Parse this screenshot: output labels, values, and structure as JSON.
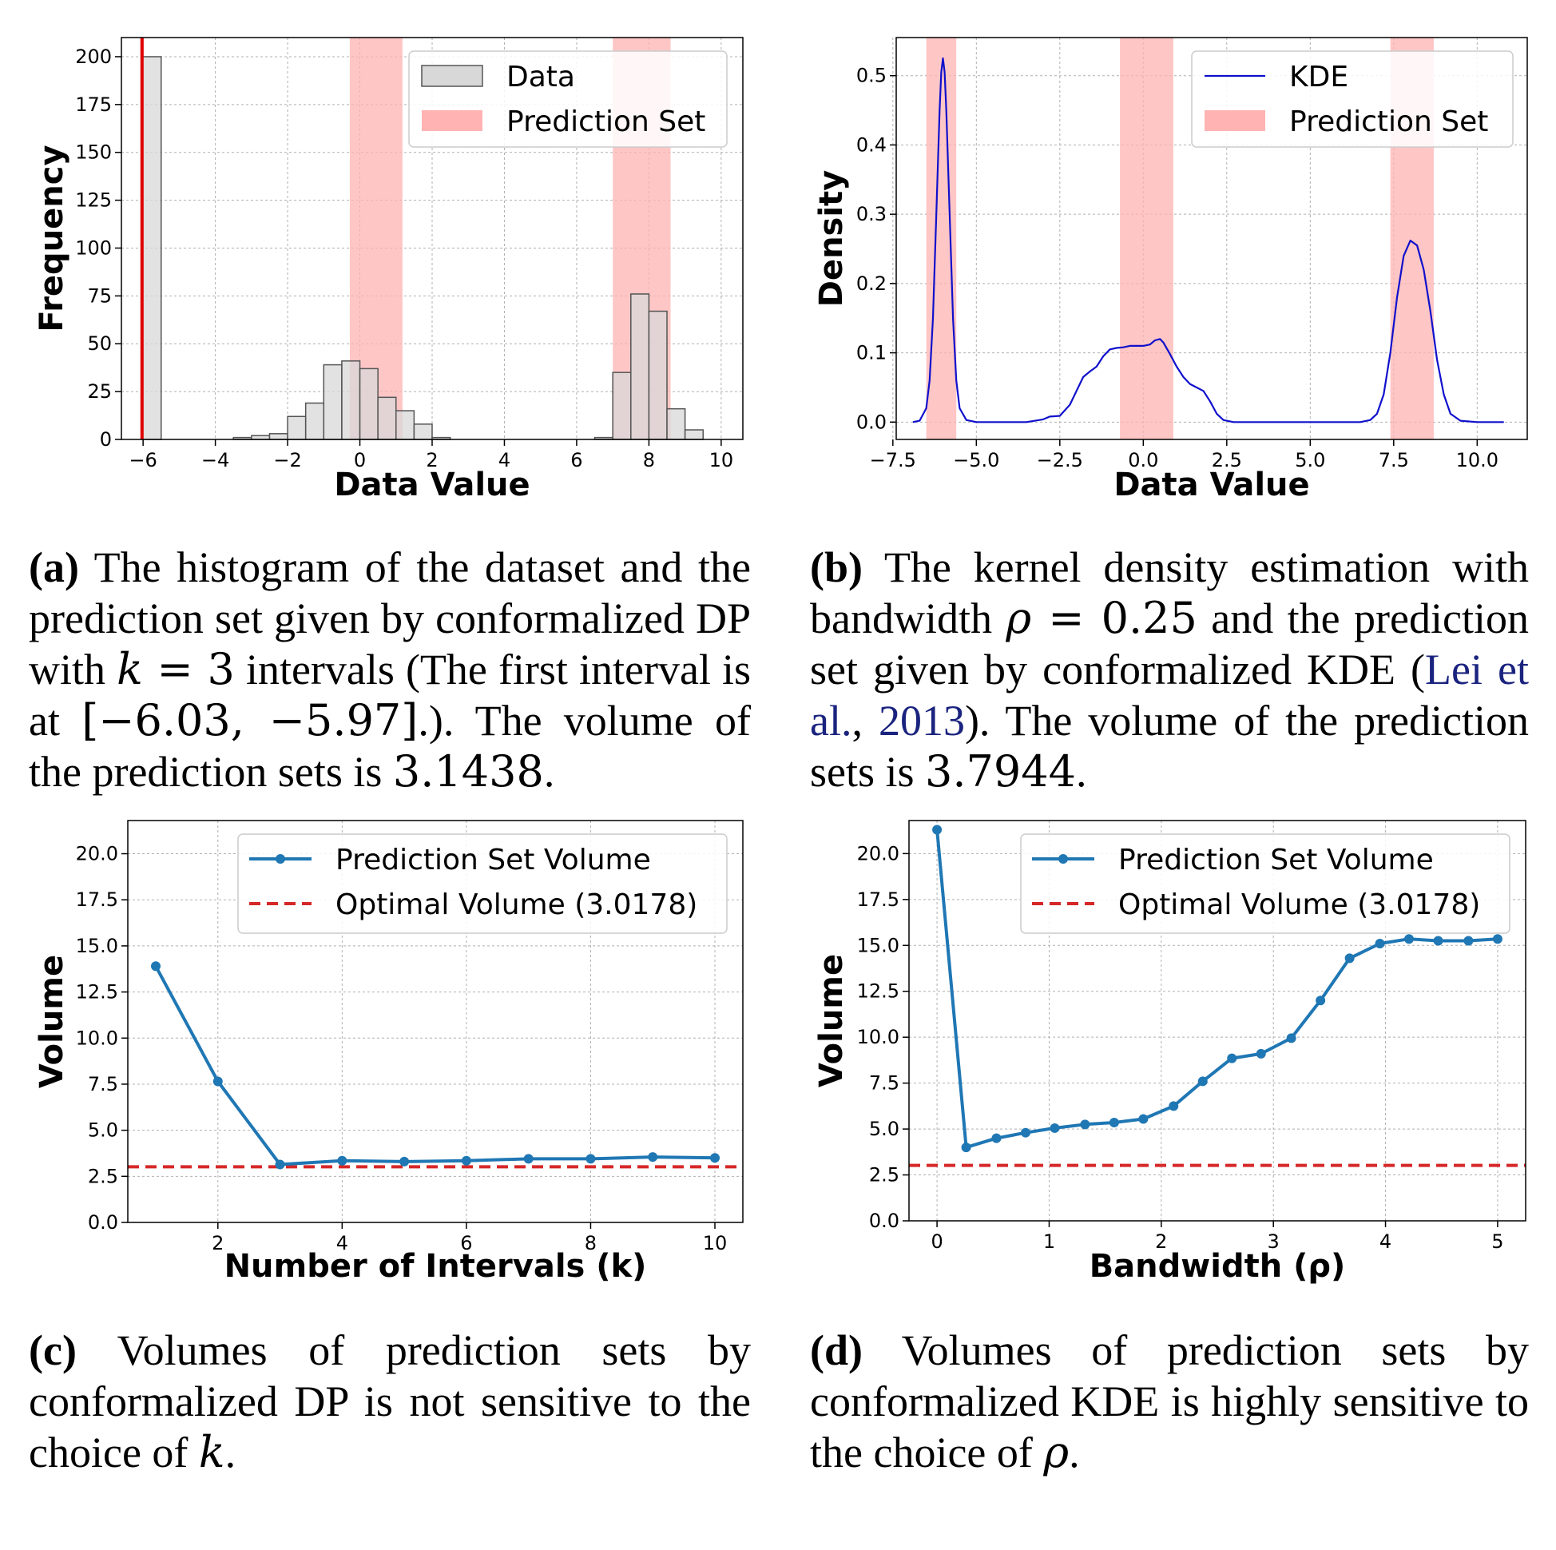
{
  "colors": {
    "hist_fill": "#d8d8d8",
    "hist_edge": "#555555",
    "pred_band": "#ffb3b3",
    "red_line": "#e00000",
    "kde_line": "#1010cc",
    "volume_line": "#1f77b4",
    "optimal_line": "#d62728",
    "grid": "#b0b0b0"
  },
  "chart_data": [
    {
      "id": "a",
      "type": "bar",
      "xlabel": "Data Value",
      "ylabel": "Frequency",
      "xlim": [
        -6.6,
        10.6
      ],
      "ylim": [
        0,
        210
      ],
      "xticks": [
        -6,
        -4,
        -2,
        0,
        2,
        4,
        6,
        8,
        10
      ],
      "xtick_labels": [
        "−6",
        "−4",
        "−2",
        "0",
        "2",
        "4",
        "6",
        "8",
        "10"
      ],
      "yticks": [
        0,
        25,
        50,
        75,
        100,
        125,
        150,
        175,
        200
      ],
      "ytick_labels": [
        "0",
        "25",
        "50",
        "75",
        "100",
        "125",
        "150",
        "175",
        "200"
      ],
      "bars": [
        {
          "x0": -6.03,
          "x1": -5.5,
          "value": 200
        },
        {
          "x0": -3.5,
          "x1": -3.0,
          "value": 1
        },
        {
          "x0": -3.0,
          "x1": -2.5,
          "value": 2
        },
        {
          "x0": -2.5,
          "x1": -2.0,
          "value": 3
        },
        {
          "x0": -2.0,
          "x1": -1.5,
          "value": 12
        },
        {
          "x0": -1.5,
          "x1": -1.0,
          "value": 19
        },
        {
          "x0": -1.0,
          "x1": -0.5,
          "value": 39
        },
        {
          "x0": -0.5,
          "x1": 0.0,
          "value": 41
        },
        {
          "x0": 0.0,
          "x1": 0.5,
          "value": 37
        },
        {
          "x0": 0.5,
          "x1": 1.0,
          "value": 22
        },
        {
          "x0": 1.0,
          "x1": 1.5,
          "value": 15
        },
        {
          "x0": 1.5,
          "x1": 2.0,
          "value": 8
        },
        {
          "x0": 2.0,
          "x1": 2.5,
          "value": 1
        },
        {
          "x0": 6.5,
          "x1": 7.0,
          "value": 1
        },
        {
          "x0": 7.0,
          "x1": 7.5,
          "value": 35
        },
        {
          "x0": 7.5,
          "x1": 8.0,
          "value": 76
        },
        {
          "x0": 8.0,
          "x1": 8.5,
          "value": 67
        },
        {
          "x0": 8.5,
          "x1": 9.0,
          "value": 16
        },
        {
          "x0": 9.0,
          "x1": 9.5,
          "value": 5
        }
      ],
      "prediction_set": [
        [
          -6.03,
          -5.97
        ],
        [
          -0.28,
          1.18
        ],
        [
          7.0,
          8.6
        ]
      ],
      "legend": [
        "Data",
        "Prediction Set"
      ],
      "legend_loc": "upper right"
    },
    {
      "id": "b",
      "type": "line",
      "xlabel": "Data Value",
      "ylabel": "Density",
      "xlim": [
        -7.4,
        11.5
      ],
      "ylim": [
        -0.025,
        0.555
      ],
      "xticks": [
        -7.5,
        -5.0,
        -2.5,
        0.0,
        2.5,
        5.0,
        7.5,
        10.0
      ],
      "xtick_labels": [
        "−7.5",
        "−5.0",
        "−2.5",
        "0.0",
        "2.5",
        "5.0",
        "7.5",
        "10.0"
      ],
      "yticks": [
        0.0,
        0.1,
        0.2,
        0.3,
        0.4,
        0.5
      ],
      "ytick_labels": [
        "0.0",
        "0.1",
        "0.2",
        "0.3",
        "0.4",
        "0.5"
      ],
      "x": [
        -6.9,
        -6.7,
        -6.5,
        -6.4,
        -6.3,
        -6.2,
        -6.1,
        -6.05,
        -6.0,
        -5.95,
        -5.9,
        -5.8,
        -5.7,
        -5.6,
        -5.5,
        -5.3,
        -5.0,
        -3.5,
        -3.0,
        -2.8,
        -2.5,
        -2.2,
        -2.0,
        -1.8,
        -1.6,
        -1.4,
        -1.2,
        -1.0,
        -0.8,
        -0.6,
        -0.4,
        -0.2,
        0.0,
        0.2,
        0.35,
        0.5,
        0.6,
        0.8,
        1.0,
        1.2,
        1.4,
        1.6,
        1.8,
        2.0,
        2.2,
        2.4,
        2.7,
        3.0,
        5.0,
        6.5,
        6.8,
        7.0,
        7.2,
        7.4,
        7.6,
        7.8,
        8.0,
        8.2,
        8.4,
        8.6,
        8.8,
        9.0,
        9.2,
        9.5,
        10.0,
        10.8
      ],
      "values": [
        0.0,
        0.002,
        0.02,
        0.06,
        0.15,
        0.3,
        0.45,
        0.505,
        0.525,
        0.505,
        0.45,
        0.3,
        0.15,
        0.06,
        0.02,
        0.003,
        0.0,
        0.0,
        0.004,
        0.008,
        0.009,
        0.025,
        0.045,
        0.065,
        0.073,
        0.08,
        0.095,
        0.105,
        0.107,
        0.108,
        0.11,
        0.11,
        0.11,
        0.112,
        0.118,
        0.12,
        0.115,
        0.098,
        0.08,
        0.065,
        0.055,
        0.05,
        0.045,
        0.03,
        0.012,
        0.003,
        0.0,
        0.0,
        0.0,
        0.0,
        0.003,
        0.012,
        0.04,
        0.1,
        0.18,
        0.24,
        0.262,
        0.255,
        0.22,
        0.16,
        0.09,
        0.04,
        0.012,
        0.002,
        0.0,
        0.0
      ],
      "prediction_set": [
        [
          -6.5,
          -5.6
        ],
        [
          -0.7,
          0.9
        ],
        [
          7.4,
          8.7
        ]
      ],
      "legend": [
        "KDE",
        "Prediction Set"
      ],
      "legend_loc": "upper right"
    },
    {
      "id": "c",
      "type": "line",
      "xlabel": "Number of Intervals (k)",
      "ylabel": "Volume",
      "xlim": [
        0.55,
        10.45
      ],
      "ylim": [
        0,
        21.8
      ],
      "xticks": [
        2,
        4,
        6,
        8,
        10
      ],
      "xtick_labels": [
        "2",
        "4",
        "6",
        "8",
        "10"
      ],
      "yticks": [
        0.0,
        2.5,
        5.0,
        7.5,
        10.0,
        12.5,
        15.0,
        17.5,
        20.0
      ],
      "ytick_labels": [
        "0.0",
        "2.5",
        "5.0",
        "7.5",
        "10.0",
        "12.5",
        "15.0",
        "17.5",
        "20.0"
      ],
      "series": [
        {
          "name": "Prediction Set Volume",
          "x": [
            1,
            2,
            3,
            4,
            5,
            6,
            7,
            8,
            9,
            10
          ],
          "values": [
            13.9,
            7.65,
            3.1438,
            3.35,
            3.3,
            3.35,
            3.45,
            3.45,
            3.55,
            3.5
          ]
        },
        {
          "name": "Optimal Volume (3.0178)",
          "value": 3.0178,
          "style": "dashed"
        }
      ],
      "legend_loc": "upper right"
    },
    {
      "id": "d",
      "type": "line",
      "xlabel": "Bandwidth (ρ)",
      "ylabel": "Volume",
      "xlim": [
        -0.25,
        5.25
      ],
      "ylim": [
        0,
        21.8
      ],
      "xticks": [
        0,
        1,
        2,
        3,
        4,
        5
      ],
      "xtick_labels": [
        "0",
        "1",
        "2",
        "3",
        "4",
        "5"
      ],
      "yticks": [
        0.0,
        2.5,
        5.0,
        7.5,
        10.0,
        12.5,
        15.0,
        17.5,
        20.0
      ],
      "ytick_labels": [
        "0.0",
        "2.5",
        "5.0",
        "7.5",
        "10.0",
        "12.5",
        "15.0",
        "17.5",
        "20.0"
      ],
      "series": [
        {
          "name": "Prediction Set Volume",
          "x": [
            0.0,
            0.26,
            0.53,
            0.79,
            1.05,
            1.32,
            1.58,
            1.84,
            2.11,
            2.37,
            2.63,
            2.89,
            3.16,
            3.42,
            3.68,
            3.95,
            4.21,
            4.47,
            4.74,
            5.0
          ],
          "values": [
            21.3,
            4.0,
            4.5,
            4.8,
            5.05,
            5.25,
            5.35,
            5.55,
            6.25,
            7.6,
            8.85,
            9.1,
            9.95,
            12.0,
            14.3,
            15.1,
            15.35,
            15.25,
            15.25,
            15.35
          ]
        },
        {
          "name": "Optimal Volume (3.0178)",
          "value": 3.0178,
          "style": "dashed"
        }
      ],
      "legend_loc": "upper right"
    }
  ],
  "captions": {
    "a": {
      "label": "(a)",
      "t1": " The histogram of the dataset and the prediction set given by conformalized DP with ",
      "m1": "k",
      "t2": " = ",
      "n1": "3",
      "t3": " intervals (The first interval is at ",
      "n2": "[−6.03, −5.97]",
      "t4": ".). The volume of the prediction sets is ",
      "n3": "3.1438",
      "t5": "."
    },
    "b": {
      "label": "(b)",
      "t1": " The kernel density estimation with bandwidth ",
      "m1": "ρ",
      "t2": " = ",
      "n1": "0.25",
      "t3": " and the prediction set given by conformalized KDE (",
      "cite1": "Lei et al.",
      "t4": ", ",
      "cite2": "2013",
      "t5": "). The volume of the prediction sets is ",
      "n2": "3.7944",
      "t6": "."
    },
    "c": {
      "label": "(c)",
      "t1": " Volumes of prediction sets by conformalized DP is not sensitive to the choice of ",
      "m1": "k",
      "t2": "."
    },
    "d": {
      "label": "(d)",
      "t1": " Volumes of prediction sets by conformalized KDE is highly sensitive to the choice of ",
      "m1": "ρ",
      "t2": "."
    }
  }
}
